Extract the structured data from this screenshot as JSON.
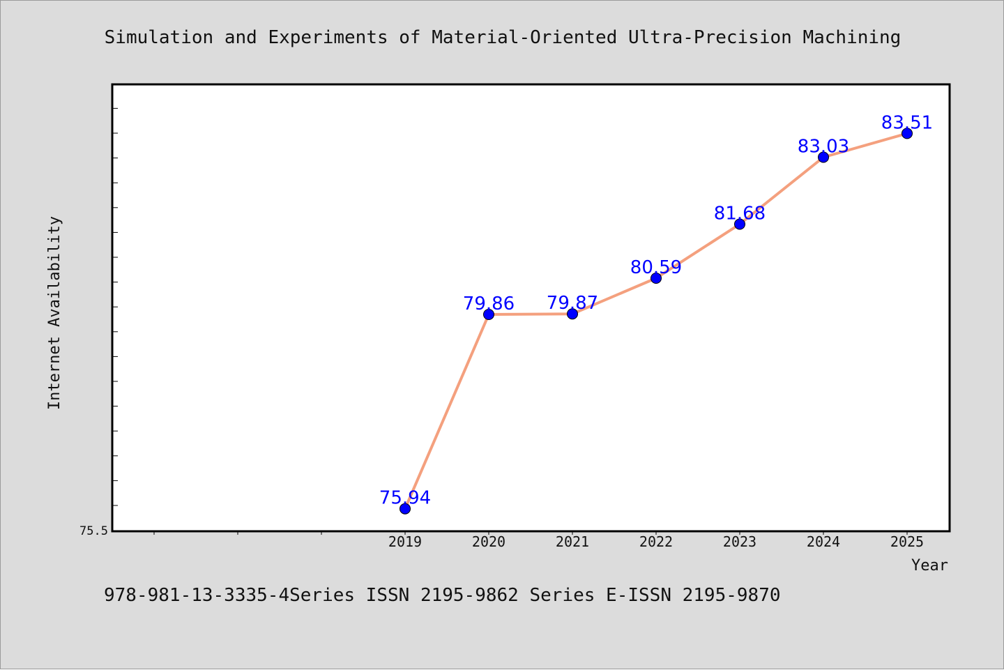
{
  "chart_data": {
    "type": "line",
    "title": "Simulation and Experiments of Material-Oriented Ultra-Precision Machining",
    "xlabel": "Year",
    "ylabel": "Internet Availability",
    "categories": [
      "2019",
      "2020",
      "2021",
      "2022",
      "2023",
      "2024",
      "2025"
    ],
    "series": [
      {
        "values": [
          75.94,
          79.86,
          79.87,
          80.59,
          81.68,
          83.03,
          83.51
        ]
      }
    ],
    "data_labels": [
      "75.94",
      "79.86",
      "79.87",
      "80.59",
      "81.68",
      "83.03",
      "83.51"
    ],
    "y_tick_labels": [
      "75.5"
    ],
    "ylim": [
      75.5,
      84.5
    ],
    "grid": false,
    "line_color": "#f4a07e",
    "marker_color": "#0000ff",
    "label_color": "#0000ff"
  },
  "footer": {
    "text": "978-981-13-3335-4Series ISSN 2195-9862 Series E-ISSN 2195-9870"
  }
}
